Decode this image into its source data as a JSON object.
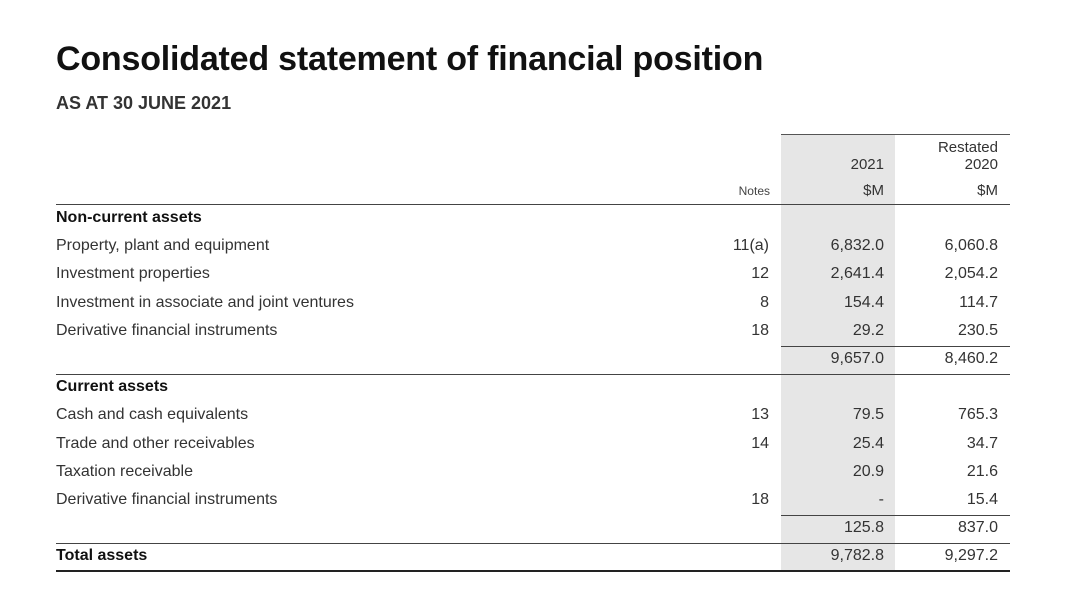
{
  "title": "Consolidated statement of financial position",
  "subtitle": "AS AT 30 JUNE 2021",
  "columns": {
    "notes": "Notes",
    "current": {
      "year": "2021",
      "unit": "$M"
    },
    "prior": {
      "restated": "Restated",
      "year": "2020",
      "unit": "$M"
    }
  },
  "sections": {
    "non_current": {
      "heading": "Non-current assets",
      "rows": [
        {
          "label": "Property, plant and equipment",
          "note": "11(a)",
          "v2021": "6,832.0",
          "v2020": "6,060.8"
        },
        {
          "label": "Investment properties",
          "note": "12",
          "v2021": "2,641.4",
          "v2020": "2,054.2"
        },
        {
          "label": "Investment in associate and joint ventures",
          "note": "8",
          "v2021": "154.4",
          "v2020": "114.7"
        },
        {
          "label": "Derivative financial instruments",
          "note": "18",
          "v2021": "29.2",
          "v2020": "230.5"
        }
      ],
      "subtotal": {
        "v2021": "9,657.0",
        "v2020": "8,460.2"
      }
    },
    "current": {
      "heading": "Current assets",
      "rows": [
        {
          "label": "Cash and cash equivalents",
          "note": "13",
          "v2021": "79.5",
          "v2020": "765.3"
        },
        {
          "label": "Trade and other receivables",
          "note": "14",
          "v2021": "25.4",
          "v2020": "34.7"
        },
        {
          "label": "Taxation receivable",
          "note": "",
          "v2021": "20.9",
          "v2020": "21.6"
        },
        {
          "label": "Derivative financial instruments",
          "note": "18",
          "v2021": "-",
          "v2020": "15.4"
        }
      ],
      "subtotal": {
        "v2021": "125.8",
        "v2020": "837.0"
      }
    }
  },
  "total": {
    "label": "Total assets",
    "v2021": "9,782.8",
    "v2020": "9,297.2"
  }
}
